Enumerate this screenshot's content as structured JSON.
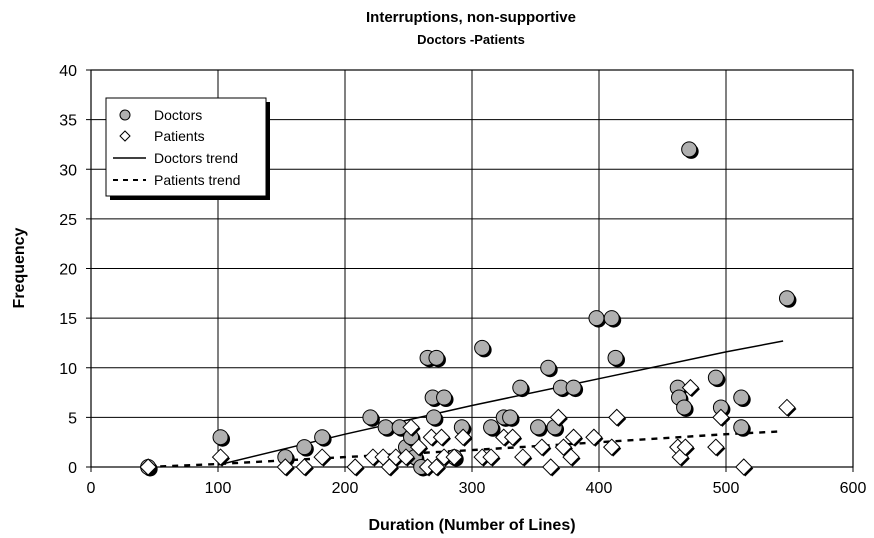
{
  "chart_data": {
    "type": "scatter",
    "title": "Interruptions, non-supportive",
    "subtitle": "Doctors -Patients",
    "xlabel": "Duration (Number of Lines)",
    "ylabel": "Frequency",
    "xlim": [
      0,
      600
    ],
    "ylim": [
      0,
      40
    ],
    "x_ticks": [
      "0",
      "100",
      "200",
      "300",
      "400",
      "500",
      "600"
    ],
    "y_ticks": [
      "0",
      "5",
      "10",
      "15",
      "20",
      "25",
      "30",
      "35",
      "40"
    ],
    "grid": true,
    "legend": "top-left",
    "series": [
      {
        "name": "Doctors",
        "marker": "circle",
        "color": "#b0b0b0",
        "points": [
          [
            45,
            0
          ],
          [
            102,
            3
          ],
          [
            153,
            1
          ],
          [
            168,
            2
          ],
          [
            182,
            3
          ],
          [
            220,
            5
          ],
          [
            232,
            4
          ],
          [
            243,
            4
          ],
          [
            248,
            2
          ],
          [
            252,
            3
          ],
          [
            255,
            1
          ],
          [
            260,
            0
          ],
          [
            265,
            11
          ],
          [
            269,
            7
          ],
          [
            270,
            5
          ],
          [
            272,
            11
          ],
          [
            278,
            7
          ],
          [
            286,
            1
          ],
          [
            292,
            4
          ],
          [
            308,
            12
          ],
          [
            315,
            4
          ],
          [
            325,
            5
          ],
          [
            330,
            5
          ],
          [
            338,
            8
          ],
          [
            352,
            4
          ],
          [
            360,
            10
          ],
          [
            365,
            4
          ],
          [
            370,
            8
          ],
          [
            380,
            8
          ],
          [
            398,
            15
          ],
          [
            410,
            15
          ],
          [
            413,
            11
          ],
          [
            462,
            8
          ],
          [
            463,
            7
          ],
          [
            467,
            6
          ],
          [
            471,
            32
          ],
          [
            492,
            9
          ],
          [
            496,
            6
          ],
          [
            512,
            7
          ],
          [
            512,
            4
          ],
          [
            548,
            17
          ]
        ]
      },
      {
        "name": "Patients",
        "marker": "diamond",
        "color": "#ffffff",
        "points": [
          [
            45,
            0
          ],
          [
            102,
            1
          ],
          [
            153,
            0
          ],
          [
            168,
            0
          ],
          [
            182,
            1
          ],
          [
            208,
            0
          ],
          [
            222,
            1
          ],
          [
            230,
            1
          ],
          [
            235,
            0
          ],
          [
            240,
            1
          ],
          [
            248,
            1
          ],
          [
            252,
            4
          ],
          [
            258,
            2
          ],
          [
            265,
            0
          ],
          [
            268,
            3
          ],
          [
            272,
            0
          ],
          [
            276,
            3
          ],
          [
            278,
            1
          ],
          [
            286,
            1
          ],
          [
            293,
            3
          ],
          [
            308,
            1
          ],
          [
            315,
            1
          ],
          [
            325,
            3
          ],
          [
            332,
            3
          ],
          [
            340,
            1
          ],
          [
            355,
            2
          ],
          [
            362,
            0
          ],
          [
            368,
            5
          ],
          [
            372,
            2
          ],
          [
            378,
            1
          ],
          [
            380,
            3
          ],
          [
            396,
            3
          ],
          [
            410,
            2
          ],
          [
            414,
            5
          ],
          [
            462,
            2
          ],
          [
            464,
            1
          ],
          [
            468,
            2
          ],
          [
            472,
            8
          ],
          [
            492,
            2
          ],
          [
            496,
            5
          ],
          [
            514,
            0
          ],
          [
            548,
            6
          ]
        ]
      },
      {
        "name": "Doctors trend",
        "type": "line",
        "style": "solid",
        "points": [
          [
            100,
            0.2
          ],
          [
            200,
            3.3
          ],
          [
            300,
            6.2
          ],
          [
            400,
            8.9
          ],
          [
            500,
            11.6
          ],
          [
            545,
            12.7
          ]
        ]
      },
      {
        "name": "Patients trend",
        "type": "line",
        "style": "dashed",
        "points": [
          [
            45,
            0
          ],
          [
            100,
            0.3
          ],
          [
            200,
            1.0
          ],
          [
            300,
            1.7
          ],
          [
            400,
            2.5
          ],
          [
            500,
            3.3
          ],
          [
            545,
            3.6
          ]
        ]
      }
    ]
  }
}
